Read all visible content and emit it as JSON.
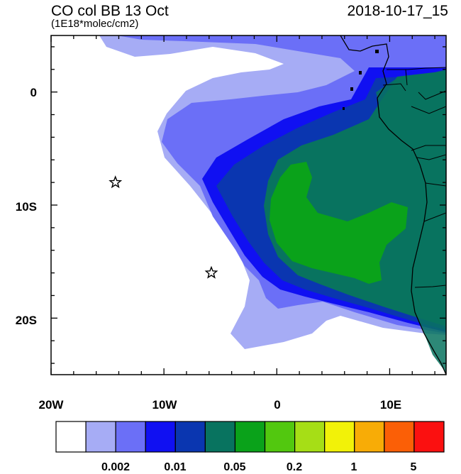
{
  "title": "CO col BB 13 Oct",
  "subtitle": "(1E18*molec/cm2)",
  "timestamp": "2018-10-17_15",
  "x_axis_labels": [
    "20W",
    "10W",
    "0",
    "10E"
  ],
  "y_axis_labels": [
    "0",
    "10S",
    "20S"
  ],
  "colorbar": {
    "colors": [
      "#ffffff",
      "#a6acf5",
      "#6b6ff7",
      "#1010f2",
      "#0a36b0",
      "#08735f",
      "#0aa21a",
      "#52c80f",
      "#a6de16",
      "#f2f208",
      "#f8ac06",
      "#fb5f06",
      "#fb1010"
    ],
    "labels": [
      "0.002",
      "0.01",
      "0.05",
      "0.2",
      "1",
      "5"
    ]
  },
  "markers": [
    {
      "name": "star-marker-1",
      "lon": -14.3,
      "lat": -8.0
    },
    {
      "name": "star-marker-2",
      "lon": -5.8,
      "lat": -16.0
    }
  ]
}
